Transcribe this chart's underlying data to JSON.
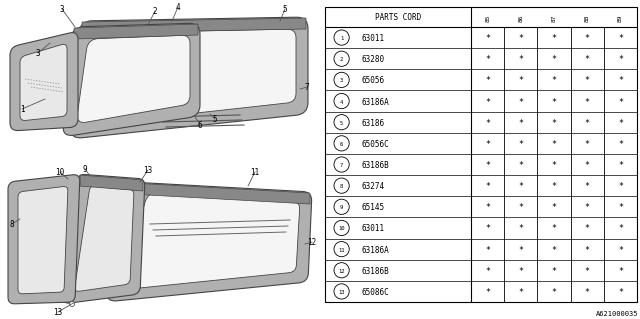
{
  "diagram_id": "A621000035",
  "bg_color": "#ffffff",
  "table": {
    "header_col": "PARTS CORD",
    "year_cols": [
      "85",
      "86",
      "87",
      "88",
      "89"
    ],
    "rows": [
      {
        "num": 1,
        "part": "63011",
        "vals": [
          "*",
          "*",
          "*",
          "*",
          "*"
        ]
      },
      {
        "num": 2,
        "part": "63280",
        "vals": [
          "*",
          "*",
          "*",
          "*",
          "*"
        ]
      },
      {
        "num": 3,
        "part": "65056",
        "vals": [
          "*",
          "*",
          "*",
          "*",
          "*"
        ]
      },
      {
        "num": 4,
        "part": "63186A",
        "vals": [
          "*",
          "*",
          "*",
          "*",
          "*"
        ]
      },
      {
        "num": 5,
        "part": "63186",
        "vals": [
          "*",
          "*",
          "*",
          "*",
          "*"
        ]
      },
      {
        "num": 6,
        "part": "65056C",
        "vals": [
          "*",
          "*",
          "*",
          "*",
          "*"
        ]
      },
      {
        "num": 7,
        "part": "63186B",
        "vals": [
          "*",
          "*",
          "*",
          "*",
          "*"
        ]
      },
      {
        "num": 8,
        "part": "63274",
        "vals": [
          "*",
          "*",
          "*",
          "*",
          "*"
        ]
      },
      {
        "num": 9,
        "part": "65145",
        "vals": [
          "*",
          "*",
          "*",
          "*",
          "*"
        ]
      },
      {
        "num": 10,
        "part": "63011",
        "vals": [
          "*",
          "*",
          "*",
          "*",
          "*"
        ]
      },
      {
        "num": 11,
        "part": "63186A",
        "vals": [
          "*",
          "*",
          "*",
          "*",
          "*"
        ]
      },
      {
        "num": 12,
        "part": "63186B",
        "vals": [
          "*",
          "*",
          "*",
          "*",
          "*"
        ]
      },
      {
        "num": 13,
        "part": "65086C",
        "vals": [
          "*",
          "*",
          "*",
          "*",
          "*"
        ]
      }
    ]
  },
  "line_color": "#000000",
  "text_color": "#000000",
  "font_family": "monospace"
}
